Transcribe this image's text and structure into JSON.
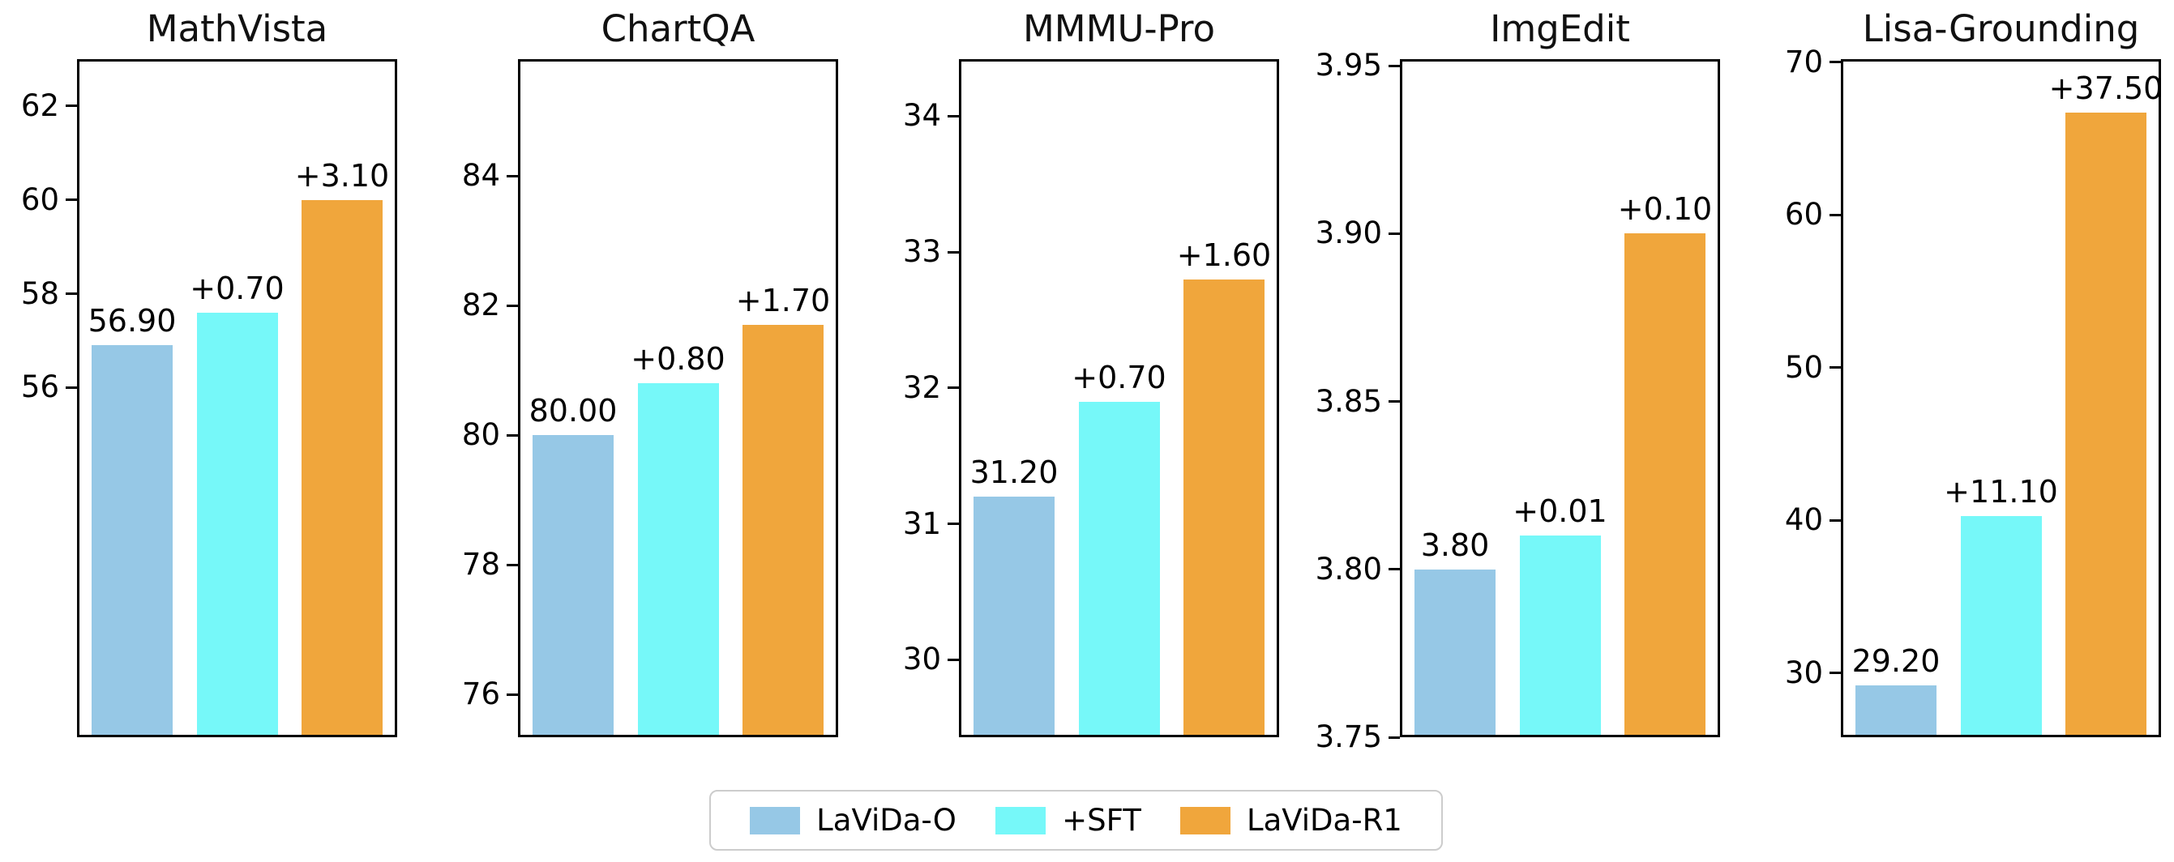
{
  "colors": {
    "lavida_o": "#96C8E6",
    "sft": "#76F8F9",
    "lavida_r1": "#F0A63C",
    "spine": "#000000",
    "legend_border": "#cccccc",
    "background": "#ffffff"
  },
  "legend": {
    "items": [
      {
        "label": "LaViDa-O",
        "series": "lavida_o"
      },
      {
        "label": "+SFT",
        "series": "sft"
      },
      {
        "label": "LaViDa-R1",
        "series": "lavida_r1"
      }
    ]
  },
  "chart_data": [
    {
      "type": "bar",
      "title": "MathVista",
      "categories": [
        "LaViDa-O",
        "+SFT",
        "LaViDa-R1"
      ],
      "values": [
        56.9,
        57.6,
        60.0
      ],
      "bar_labels": [
        "56.90",
        "+0.70",
        "+3.10"
      ],
      "xlabel": "",
      "ylabel": "",
      "ylim": [
        48.55,
        63.0
      ],
      "yticks": [
        {
          "value": 56,
          "label": "56"
        },
        {
          "value": 58,
          "label": "58"
        },
        {
          "value": 60,
          "label": "60"
        },
        {
          "value": 62,
          "label": "62"
        }
      ],
      "grid": false
    },
    {
      "type": "bar",
      "title": "ChartQA",
      "categories": [
        "LaViDa-O",
        "+SFT",
        "LaViDa-R1"
      ],
      "values": [
        80.0,
        80.8,
        81.7
      ],
      "bar_labels": [
        "80.00",
        "+0.80",
        "+1.70"
      ],
      "xlabel": "",
      "ylabel": "",
      "ylim": [
        75.34,
        85.8
      ],
      "yticks": [
        {
          "value": 76,
          "label": "76"
        },
        {
          "value": 78,
          "label": "78"
        },
        {
          "value": 80,
          "label": "80"
        },
        {
          "value": 82,
          "label": "82"
        },
        {
          "value": 84,
          "label": "84"
        }
      ],
      "grid": false
    },
    {
      "type": "bar",
      "title": "MMMU-Pro",
      "categories": [
        "LaViDa-O",
        "+SFT",
        "LaViDa-R1"
      ],
      "values": [
        31.2,
        31.9,
        32.8
      ],
      "bar_labels": [
        "31.20",
        "+0.70",
        "+1.60"
      ],
      "xlabel": "",
      "ylabel": "",
      "ylim": [
        29.43,
        34.42
      ],
      "yticks": [
        {
          "value": 30,
          "label": "30"
        },
        {
          "value": 31,
          "label": "31"
        },
        {
          "value": 32,
          "label": "32"
        },
        {
          "value": 33,
          "label": "33"
        },
        {
          "value": 34,
          "label": "34"
        }
      ],
      "grid": false
    },
    {
      "type": "bar",
      "title": "ImgEdit",
      "categories": [
        "LaViDa-O",
        "+SFT",
        "LaViDa-R1"
      ],
      "values": [
        3.8,
        3.81,
        3.9
      ],
      "bar_labels": [
        "3.80",
        "+0.01",
        "+0.10"
      ],
      "xlabel": "",
      "ylabel": "",
      "ylim": [
        3.75,
        3.952
      ],
      "yticks": [
        {
          "value": 3.75,
          "label": "3.75"
        },
        {
          "value": 3.8,
          "label": "3.80"
        },
        {
          "value": 3.85,
          "label": "3.85"
        },
        {
          "value": 3.9,
          "label": "3.90"
        },
        {
          "value": 3.95,
          "label": "3.95"
        }
      ],
      "grid": false
    },
    {
      "type": "bar",
      "title": "Lisa-Grounding",
      "categories": [
        "LaViDa-O",
        "+SFT",
        "LaViDa-R1"
      ],
      "values": [
        29.2,
        40.3,
        66.7
      ],
      "bar_labels": [
        "29.20",
        "+11.10",
        "+37.50"
      ],
      "xlabel": "",
      "ylabel": "",
      "ylim": [
        25.8,
        70.2
      ],
      "yticks": [
        {
          "value": 30,
          "label": "30"
        },
        {
          "value": 40,
          "label": "40"
        },
        {
          "value": 50,
          "label": "50"
        },
        {
          "value": 60,
          "label": "60"
        },
        {
          "value": 70,
          "label": "70"
        }
      ],
      "grid": false
    }
  ]
}
